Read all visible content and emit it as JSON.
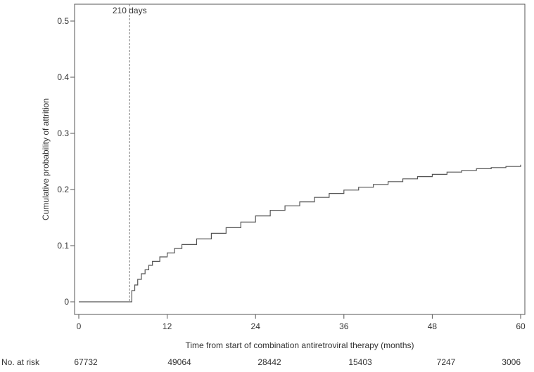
{
  "chart_data": {
    "type": "line",
    "title": "",
    "xlabel": "Time from start of combination antiretroviral therapy (months)",
    "ylabel": "Cumulative probability of attrition",
    "xlim": [
      0,
      60
    ],
    "ylim": [
      0,
      0.53
    ],
    "xticks": [
      0,
      12,
      24,
      36,
      48,
      60
    ],
    "xtick_labels": [
      "0",
      "12",
      "24",
      "36",
      "48",
      "60"
    ],
    "yticks": [
      0,
      0.1,
      0.2,
      0.3,
      0.4,
      0.5
    ],
    "ytick_labels": [
      "0",
      "0.1",
      "0.2",
      "0.3",
      "0.4",
      "0.5"
    ],
    "grid": false,
    "legend": "none",
    "line_color": "#555555",
    "annotation": {
      "label": "210 days",
      "x": 6.9
    },
    "series": [
      {
        "x": [
          0,
          6.9,
          7.2,
          7.6,
          8.0,
          8.5,
          9.0,
          9.5,
          10.0,
          11.0,
          12.0,
          13.0,
          14.0,
          16.0,
          18.0,
          20.0,
          22.0,
          24.0,
          26.0,
          28.0,
          30.0,
          32.0,
          34.0,
          36.0,
          38.0,
          40.0,
          42.0,
          44.0,
          46.0,
          48.0,
          50.0,
          52.0,
          54.0,
          56.0,
          58.0,
          60.0
        ],
        "y": [
          0,
          0,
          0.02,
          0.03,
          0.04,
          0.05,
          0.057,
          0.065,
          0.072,
          0.08,
          0.087,
          0.095,
          0.102,
          0.112,
          0.122,
          0.132,
          0.142,
          0.153,
          0.163,
          0.171,
          0.178,
          0.186,
          0.193,
          0.199,
          0.204,
          0.209,
          0.214,
          0.219,
          0.223,
          0.227,
          0.231,
          0.234,
          0.237,
          0.239,
          0.241,
          0.244
        ]
      }
    ]
  },
  "risk_table": {
    "label": "No. at risk",
    "values": [
      "67732",
      "49064",
      "28442",
      "15403",
      "7247",
      "3006"
    ]
  }
}
